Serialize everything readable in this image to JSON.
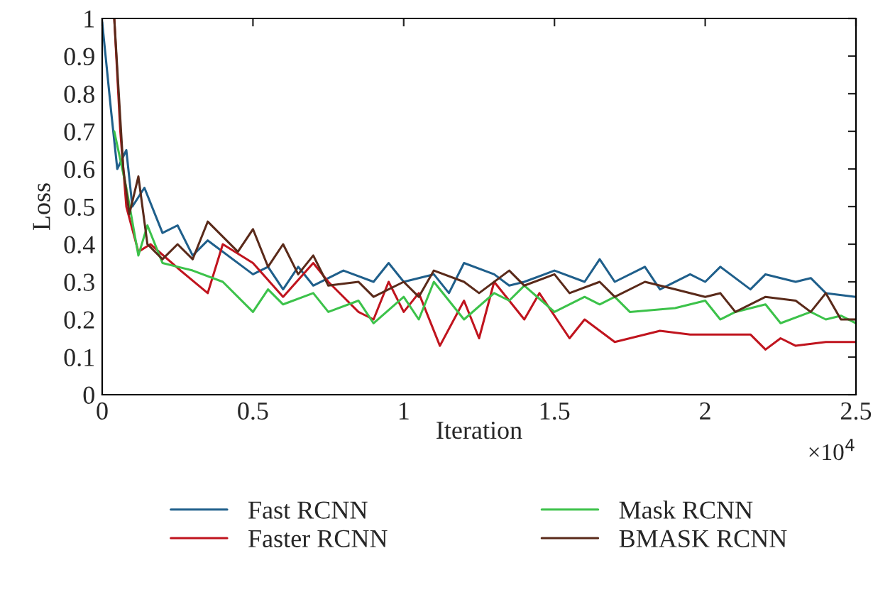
{
  "chart_data": {
    "type": "line",
    "xlabel": "Iteration",
    "ylabel": "Loss",
    "annotations": [
      "×10$^{4}$"
    ],
    "xlim": [
      0,
      2.5
    ],
    "ylim": [
      0,
      1
    ],
    "xticks": [
      0,
      0.5,
      1,
      1.5,
      2,
      2.5
    ],
    "yticks": [
      0,
      0.1,
      0.2,
      0.3,
      0.4,
      0.5,
      0.6,
      0.7,
      0.8,
      0.9,
      1
    ],
    "legend": "bottom",
    "grid": false,
    "marker": "none",
    "line_style": "solid",
    "series": [
      {
        "name": "Fast RCNN",
        "color": "#1f5f8b",
        "x": [
          0,
          0.03,
          0.05,
          0.08,
          0.1,
          0.14,
          0.2,
          0.25,
          0.3,
          0.35,
          0.5,
          0.55,
          0.6,
          0.65,
          0.7,
          0.8,
          0.9,
          0.95,
          1.0,
          1.1,
          1.15,
          1.2,
          1.3,
          1.35,
          1.4,
          1.5,
          1.6,
          1.65,
          1.7,
          1.8,
          1.85,
          1.95,
          2.0,
          2.05,
          2.15,
          2.2,
          2.3,
          2.35,
          2.4,
          2.5
        ],
        "values": [
          0.99,
          0.75,
          0.6,
          0.65,
          0.5,
          0.55,
          0.43,
          0.45,
          0.37,
          0.41,
          0.32,
          0.34,
          0.28,
          0.34,
          0.29,
          0.33,
          0.3,
          0.35,
          0.3,
          0.32,
          0.27,
          0.35,
          0.32,
          0.29,
          0.3,
          0.33,
          0.3,
          0.36,
          0.3,
          0.34,
          0.28,
          0.32,
          0.3,
          0.34,
          0.28,
          0.32,
          0.3,
          0.31,
          0.27,
          0.26
        ]
      },
      {
        "name": "Faster RCNN",
        "color": "#c0141e",
        "x": [
          0.04,
          0.06,
          0.08,
          0.12,
          0.16,
          0.26,
          0.35,
          0.4,
          0.5,
          0.6,
          0.7,
          0.75,
          0.85,
          0.9,
          0.95,
          1.0,
          1.05,
          1.12,
          1.2,
          1.25,
          1.3,
          1.4,
          1.45,
          1.55,
          1.6,
          1.7,
          1.75,
          1.85,
          1.95,
          2.15,
          2.2,
          2.25,
          2.3,
          2.4,
          2.5
        ],
        "values": [
          1.0,
          0.7,
          0.5,
          0.38,
          0.4,
          0.33,
          0.27,
          0.4,
          0.35,
          0.26,
          0.35,
          0.3,
          0.22,
          0.2,
          0.3,
          0.22,
          0.27,
          0.13,
          0.25,
          0.15,
          0.3,
          0.2,
          0.27,
          0.15,
          0.2,
          0.14,
          0.15,
          0.17,
          0.16,
          0.16,
          0.12,
          0.15,
          0.13,
          0.14,
          0.14
        ]
      },
      {
        "name": "Mask RCNN",
        "color": "#3cc24a",
        "x": [
          0.04,
          0.08,
          0.12,
          0.15,
          0.2,
          0.3,
          0.4,
          0.5,
          0.55,
          0.6,
          0.7,
          0.75,
          0.85,
          0.9,
          1.0,
          1.05,
          1.1,
          1.15,
          1.2,
          1.3,
          1.35,
          1.4,
          1.5,
          1.6,
          1.65,
          1.7,
          1.75,
          1.9,
          2.0,
          2.05,
          2.1,
          2.2,
          2.25,
          2.35,
          2.4,
          2.45,
          2.5
        ],
        "values": [
          0.7,
          0.55,
          0.37,
          0.45,
          0.35,
          0.33,
          0.3,
          0.22,
          0.28,
          0.24,
          0.27,
          0.22,
          0.25,
          0.19,
          0.26,
          0.2,
          0.3,
          0.25,
          0.2,
          0.27,
          0.25,
          0.29,
          0.22,
          0.26,
          0.24,
          0.26,
          0.22,
          0.23,
          0.25,
          0.2,
          0.22,
          0.24,
          0.19,
          0.22,
          0.2,
          0.21,
          0.19
        ]
      },
      {
        "name": "BMASK RCNN",
        "color": "#5a2a1a",
        "x": [
          0.04,
          0.07,
          0.09,
          0.12,
          0.15,
          0.2,
          0.25,
          0.3,
          0.35,
          0.45,
          0.5,
          0.55,
          0.6,
          0.65,
          0.7,
          0.75,
          0.85,
          0.9,
          1.0,
          1.05,
          1.1,
          1.2,
          1.25,
          1.35,
          1.4,
          1.5,
          1.55,
          1.65,
          1.7,
          1.8,
          1.9,
          2.0,
          2.05,
          2.1,
          2.2,
          2.3,
          2.35,
          2.4,
          2.45,
          2.5
        ],
        "values": [
          1.0,
          0.6,
          0.48,
          0.58,
          0.4,
          0.36,
          0.4,
          0.36,
          0.46,
          0.38,
          0.44,
          0.34,
          0.4,
          0.32,
          0.37,
          0.29,
          0.3,
          0.26,
          0.3,
          0.26,
          0.33,
          0.3,
          0.27,
          0.33,
          0.29,
          0.32,
          0.27,
          0.3,
          0.26,
          0.3,
          0.28,
          0.26,
          0.27,
          0.22,
          0.26,
          0.25,
          0.22,
          0.27,
          0.2,
          0.2
        ]
      }
    ]
  }
}
